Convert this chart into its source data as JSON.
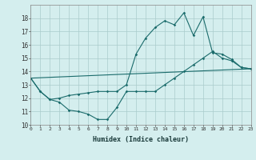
{
  "title": "",
  "xlabel": "Humidex (Indice chaleur)",
  "xlim": [
    0,
    23
  ],
  "ylim": [
    10,
    19
  ],
  "yticks": [
    10,
    11,
    12,
    13,
    14,
    15,
    16,
    17,
    18
  ],
  "xticks": [
    0,
    1,
    2,
    3,
    4,
    5,
    6,
    7,
    8,
    9,
    10,
    11,
    12,
    13,
    14,
    15,
    16,
    17,
    18,
    19,
    20,
    21,
    22,
    23
  ],
  "background_color": "#d4eeee",
  "grid_color": "#aacccc",
  "line_color": "#1a6b6b",
  "line1_x": [
    0,
    1,
    2,
    3,
    4,
    5,
    6,
    7,
    8,
    9,
    10,
    11,
    12,
    13,
    14,
    15,
    16,
    17,
    18,
    19,
    20,
    21,
    22,
    23
  ],
  "line1_y": [
    13.5,
    12.5,
    11.9,
    11.7,
    11.1,
    11.0,
    10.8,
    10.4,
    10.4,
    11.3,
    12.5,
    12.5,
    12.5,
    12.5,
    13.0,
    13.5,
    14.0,
    14.5,
    15.0,
    15.5,
    15.0,
    14.8,
    14.3,
    14.2
  ],
  "line2_x": [
    0,
    1,
    2,
    3,
    4,
    5,
    6,
    7,
    8,
    9,
    10,
    11,
    12,
    13,
    14,
    15,
    16,
    17,
    18,
    19,
    20,
    21,
    22,
    23
  ],
  "line2_y": [
    13.5,
    12.5,
    11.9,
    12.0,
    12.2,
    12.3,
    12.4,
    12.5,
    12.5,
    12.5,
    13.0,
    15.3,
    16.5,
    17.3,
    17.8,
    17.5,
    18.4,
    16.7,
    18.1,
    15.4,
    15.3,
    14.9,
    14.3,
    14.2
  ],
  "line3_x": [
    0,
    23
  ],
  "line3_y": [
    13.5,
    14.2
  ]
}
